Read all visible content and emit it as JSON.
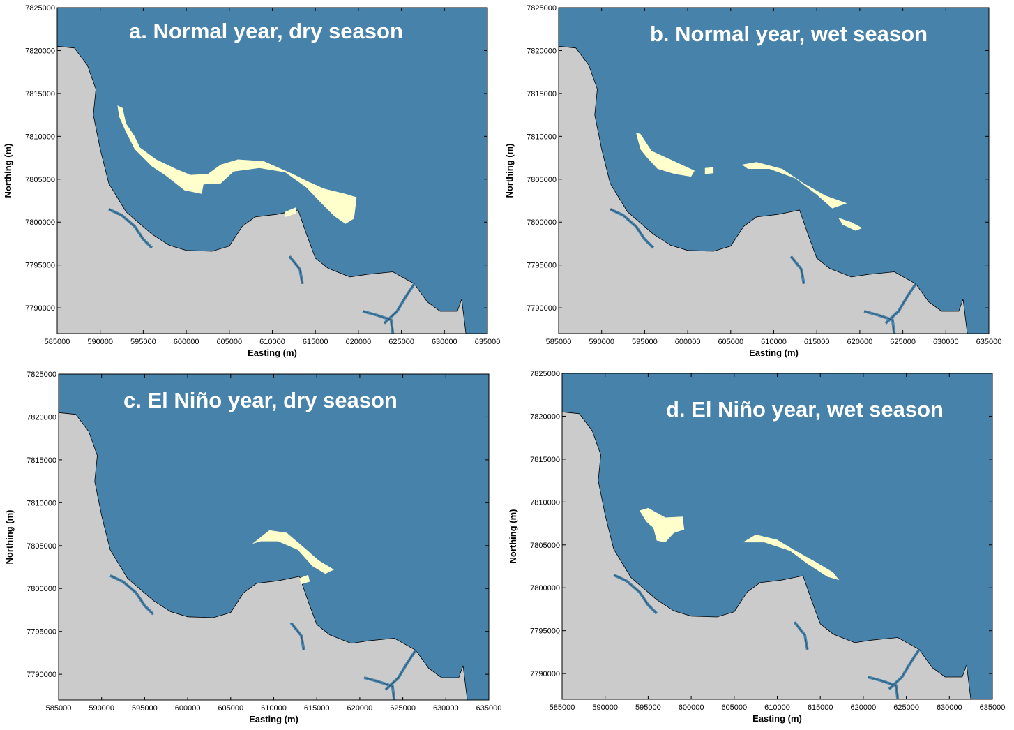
{
  "figure": {
    "x_axis": {
      "label": "Easting (m)",
      "ticks": [
        "585000",
        "590000",
        "595000",
        "600000",
        "605000",
        "610000",
        "615000",
        "620000",
        "625000",
        "630000",
        "635000"
      ],
      "range": [
        585000,
        635000
      ]
    },
    "y_axis": {
      "label": "Northing (m)",
      "ticks": [
        "7790000",
        "7795000",
        "7800000",
        "7805000",
        "7810000",
        "7815000",
        "7820000",
        "7825000"
      ],
      "range": [
        7787000,
        7825000
      ]
    },
    "colors": {
      "water": "#4682a9",
      "land": "#cbcbcb",
      "plume": "#ffffcc",
      "coastline": "#000000"
    },
    "panels": [
      {
        "id": "a",
        "title": "a. Normal year, dry season"
      },
      {
        "id": "b",
        "title": "b. Normal year, wet season"
      },
      {
        "id": "c",
        "title": "c. El Niño year, dry season"
      },
      {
        "id": "d",
        "title": "d. El Niño year, wet  season"
      }
    ]
  }
}
